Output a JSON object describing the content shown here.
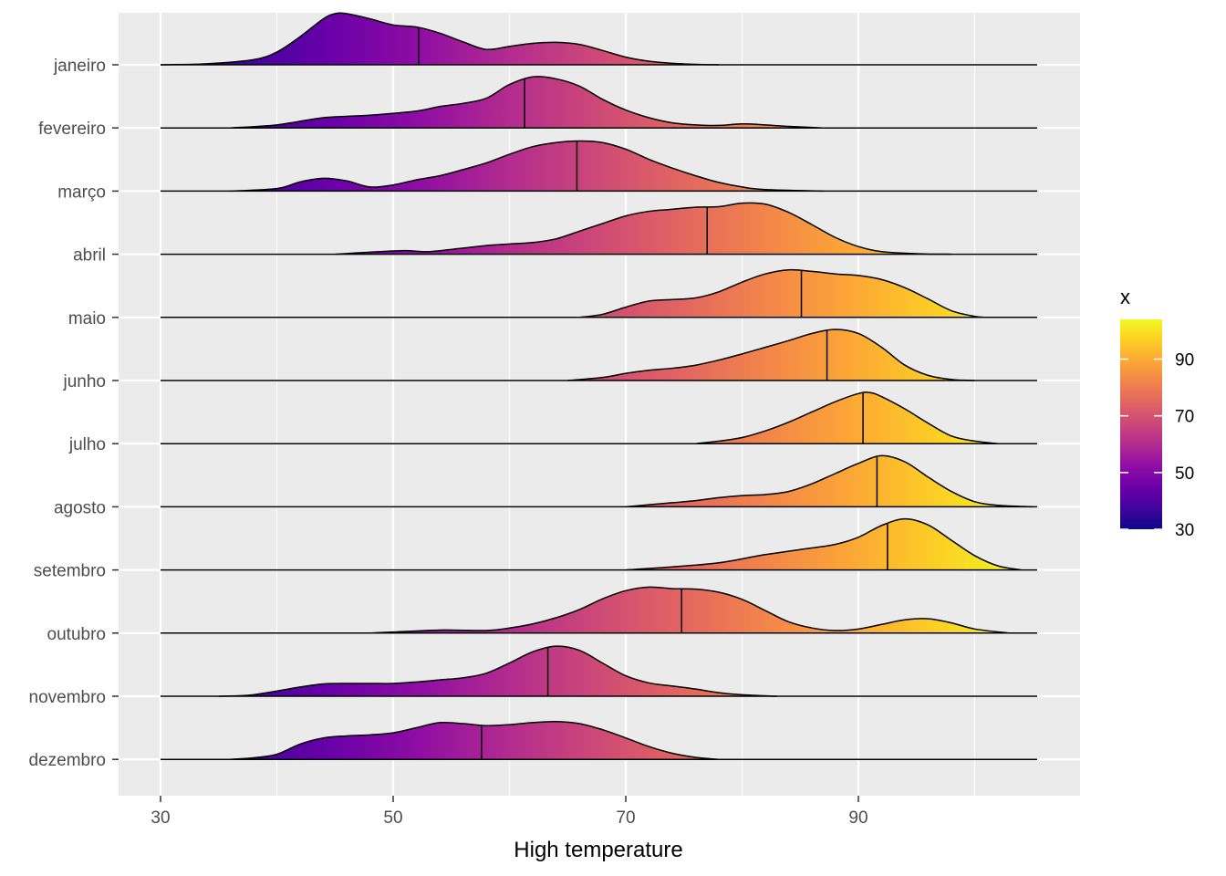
{
  "chart_data": {
    "type": "ridgeline",
    "title": "",
    "xlabel": "High temperature",
    "ylabel": "",
    "xlim": [
      26,
      105
    ],
    "x_ticks": [
      30,
      50,
      70,
      90
    ],
    "x_minor_grid": [
      40,
      60,
      80,
      100
    ],
    "grid": true,
    "fill_scale": "plasma",
    "legend": {
      "title": "x",
      "position": "right",
      "range": [
        30,
        104
      ],
      "ticks": [
        30,
        50,
        70,
        90
      ]
    },
    "categories": [
      "janeiro",
      "fevereiro",
      "março",
      "abril",
      "maio",
      "junho",
      "julho",
      "agosto",
      "setembro",
      "outubro",
      "novembro",
      "dezembro"
    ],
    "series": [
      {
        "name": "janeiro",
        "median": 52.2,
        "range": [
          30,
          78
        ],
        "profile": [
          [
            30,
            0
          ],
          [
            34,
            0.02
          ],
          [
            38,
            0.1
          ],
          [
            40,
            0.25
          ],
          [
            42,
            0.55
          ],
          [
            44,
            0.9
          ],
          [
            45,
            1.0
          ],
          [
            46,
            1.0
          ],
          [
            48,
            0.9
          ],
          [
            50,
            0.78
          ],
          [
            52,
            0.74
          ],
          [
            54,
            0.62
          ],
          [
            56,
            0.45
          ],
          [
            58,
            0.3
          ],
          [
            60,
            0.36
          ],
          [
            62,
            0.42
          ],
          [
            64,
            0.44
          ],
          [
            66,
            0.4
          ],
          [
            68,
            0.28
          ],
          [
            70,
            0.15
          ],
          [
            72,
            0.07
          ],
          [
            74,
            0.03
          ],
          [
            76,
            0.01
          ],
          [
            78,
            0
          ]
        ]
      },
      {
        "name": "fevereiro",
        "median": 61.3,
        "range": [
          36,
          87
        ],
        "profile": [
          [
            36,
            0
          ],
          [
            40,
            0.06
          ],
          [
            44,
            0.2
          ],
          [
            48,
            0.25
          ],
          [
            52,
            0.33
          ],
          [
            54,
            0.42
          ],
          [
            56,
            0.48
          ],
          [
            58,
            0.58
          ],
          [
            60,
            0.85
          ],
          [
            62,
            1.0
          ],
          [
            64,
            0.96
          ],
          [
            66,
            0.82
          ],
          [
            68,
            0.56
          ],
          [
            70,
            0.35
          ],
          [
            72,
            0.2
          ],
          [
            74,
            0.1
          ],
          [
            76,
            0.06
          ],
          [
            78,
            0.05
          ],
          [
            80,
            0.08
          ],
          [
            82,
            0.06
          ],
          [
            84,
            0.03
          ],
          [
            87,
            0
          ]
        ]
      },
      {
        "name": "março",
        "median": 65.8,
        "range": [
          36,
          87
        ],
        "profile": [
          [
            36,
            0
          ],
          [
            40,
            0.05
          ],
          [
            42,
            0.18
          ],
          [
            44,
            0.25
          ],
          [
            46,
            0.2
          ],
          [
            48,
            0.08
          ],
          [
            50,
            0.12
          ],
          [
            52,
            0.22
          ],
          [
            54,
            0.3
          ],
          [
            56,
            0.42
          ],
          [
            58,
            0.55
          ],
          [
            60,
            0.72
          ],
          [
            62,
            0.87
          ],
          [
            64,
            0.95
          ],
          [
            66,
            0.98
          ],
          [
            68,
            0.95
          ],
          [
            70,
            0.82
          ],
          [
            72,
            0.62
          ],
          [
            74,
            0.45
          ],
          [
            76,
            0.3
          ],
          [
            78,
            0.17
          ],
          [
            80,
            0.08
          ],
          [
            82,
            0.03
          ],
          [
            87,
            0
          ]
        ]
      },
      {
        "name": "abril",
        "median": 77.0,
        "range": [
          45,
          98
        ],
        "profile": [
          [
            45,
            0
          ],
          [
            48,
            0.04
          ],
          [
            51,
            0.07
          ],
          [
            53,
            0.05
          ],
          [
            56,
            0.12
          ],
          [
            58,
            0.17
          ],
          [
            60,
            0.2
          ],
          [
            62,
            0.23
          ],
          [
            64,
            0.3
          ],
          [
            66,
            0.45
          ],
          [
            68,
            0.6
          ],
          [
            70,
            0.75
          ],
          [
            72,
            0.84
          ],
          [
            74,
            0.88
          ],
          [
            76,
            0.92
          ],
          [
            78,
            0.93
          ],
          [
            80,
            1.0
          ],
          [
            82,
            0.98
          ],
          [
            84,
            0.82
          ],
          [
            86,
            0.58
          ],
          [
            88,
            0.33
          ],
          [
            90,
            0.15
          ],
          [
            92,
            0.05
          ],
          [
            95,
            0.01
          ],
          [
            98,
            0
          ]
        ]
      },
      {
        "name": "maio",
        "median": 85.1,
        "range": [
          66,
          101
        ],
        "profile": [
          [
            66,
            0
          ],
          [
            68,
            0.06
          ],
          [
            70,
            0.2
          ],
          [
            72,
            0.32
          ],
          [
            74,
            0.35
          ],
          [
            76,
            0.38
          ],
          [
            78,
            0.5
          ],
          [
            80,
            0.69
          ],
          [
            82,
            0.85
          ],
          [
            84,
            0.93
          ],
          [
            86,
            0.9
          ],
          [
            88,
            0.85
          ],
          [
            90,
            0.82
          ],
          [
            92,
            0.74
          ],
          [
            94,
            0.58
          ],
          [
            96,
            0.36
          ],
          [
            98,
            0.13
          ],
          [
            100,
            0.02
          ],
          [
            101,
            0
          ]
        ]
      },
      {
        "name": "junho",
        "median": 87.3,
        "range": [
          65,
          100
        ],
        "profile": [
          [
            65,
            0
          ],
          [
            68,
            0.06
          ],
          [
            70,
            0.14
          ],
          [
            72,
            0.2
          ],
          [
            74,
            0.24
          ],
          [
            76,
            0.3
          ],
          [
            78,
            0.4
          ],
          [
            80,
            0.52
          ],
          [
            82,
            0.65
          ],
          [
            84,
            0.78
          ],
          [
            86,
            0.92
          ],
          [
            88,
            1.0
          ],
          [
            90,
            0.92
          ],
          [
            92,
            0.65
          ],
          [
            94,
            0.3
          ],
          [
            96,
            0.1
          ],
          [
            98,
            0.02
          ],
          [
            100,
            0
          ]
        ]
      },
      {
        "name": "julho",
        "median": 90.4,
        "range": [
          76,
          102
        ],
        "profile": [
          [
            76,
            0
          ],
          [
            78,
            0.05
          ],
          [
            80,
            0.12
          ],
          [
            82,
            0.25
          ],
          [
            84,
            0.42
          ],
          [
            86,
            0.62
          ],
          [
            88,
            0.82
          ],
          [
            90,
            0.98
          ],
          [
            91,
            1.0
          ],
          [
            92,
            0.92
          ],
          [
            94,
            0.68
          ],
          [
            96,
            0.4
          ],
          [
            98,
            0.15
          ],
          [
            100,
            0.05
          ],
          [
            102,
            0
          ]
        ]
      },
      {
        "name": "agosto",
        "median": 91.6,
        "range": [
          70,
          105
        ],
        "profile": [
          [
            70,
            0
          ],
          [
            72,
            0.04
          ],
          [
            74,
            0.08
          ],
          [
            76,
            0.12
          ],
          [
            78,
            0.18
          ],
          [
            80,
            0.22
          ],
          [
            82,
            0.24
          ],
          [
            84,
            0.3
          ],
          [
            86,
            0.45
          ],
          [
            88,
            0.65
          ],
          [
            90,
            0.85
          ],
          [
            92,
            1.0
          ],
          [
            94,
            0.88
          ],
          [
            96,
            0.58
          ],
          [
            98,
            0.3
          ],
          [
            100,
            0.1
          ],
          [
            102,
            0.03
          ],
          [
            105,
            0
          ]
        ]
      },
      {
        "name": "setembro",
        "median": 92.5,
        "range": [
          70,
          104
        ],
        "profile": [
          [
            70,
            0
          ],
          [
            74,
            0.06
          ],
          [
            78,
            0.14
          ],
          [
            82,
            0.3
          ],
          [
            86,
            0.43
          ],
          [
            88,
            0.5
          ],
          [
            90,
            0.64
          ],
          [
            92,
            0.87
          ],
          [
            94,
            1.0
          ],
          [
            96,
            0.88
          ],
          [
            98,
            0.58
          ],
          [
            100,
            0.28
          ],
          [
            102,
            0.08
          ],
          [
            104,
            0
          ]
        ]
      },
      {
        "name": "outubro",
        "median": 74.8,
        "range": [
          48,
          103
        ],
        "profile": [
          [
            48,
            0
          ],
          [
            50,
            0.02
          ],
          [
            54,
            0.06
          ],
          [
            58,
            0.05
          ],
          [
            60,
            0.1
          ],
          [
            62,
            0.18
          ],
          [
            64,
            0.3
          ],
          [
            66,
            0.46
          ],
          [
            68,
            0.67
          ],
          [
            70,
            0.83
          ],
          [
            72,
            0.9
          ],
          [
            74,
            0.87
          ],
          [
            76,
            0.86
          ],
          [
            78,
            0.8
          ],
          [
            80,
            0.66
          ],
          [
            82,
            0.44
          ],
          [
            84,
            0.22
          ],
          [
            86,
            0.1
          ],
          [
            88,
            0.05
          ],
          [
            90,
            0.08
          ],
          [
            92,
            0.17
          ],
          [
            94,
            0.26
          ],
          [
            96,
            0.28
          ],
          [
            98,
            0.2
          ],
          [
            100,
            0.08
          ],
          [
            103,
            0
          ]
        ]
      },
      {
        "name": "novembro",
        "median": 63.3,
        "range": [
          35,
          83
        ],
        "profile": [
          [
            35,
            0
          ],
          [
            38,
            0.03
          ],
          [
            42,
            0.18
          ],
          [
            44,
            0.24
          ],
          [
            46,
            0.25
          ],
          [
            48,
            0.25
          ],
          [
            50,
            0.25
          ],
          [
            52,
            0.28
          ],
          [
            54,
            0.32
          ],
          [
            56,
            0.36
          ],
          [
            58,
            0.45
          ],
          [
            60,
            0.65
          ],
          [
            62,
            0.87
          ],
          [
            64,
            0.98
          ],
          [
            66,
            0.9
          ],
          [
            68,
            0.65
          ],
          [
            70,
            0.4
          ],
          [
            72,
            0.26
          ],
          [
            74,
            0.2
          ],
          [
            76,
            0.14
          ],
          [
            78,
            0.07
          ],
          [
            80,
            0.03
          ],
          [
            83,
            0
          ]
        ]
      },
      {
        "name": "dezembro",
        "median": 57.6,
        "range": [
          36,
          78
        ],
        "profile": [
          [
            36,
            0
          ],
          [
            38,
            0.03
          ],
          [
            40,
            0.1
          ],
          [
            42,
            0.3
          ],
          [
            44,
            0.42
          ],
          [
            46,
            0.46
          ],
          [
            48,
            0.48
          ],
          [
            50,
            0.52
          ],
          [
            52,
            0.62
          ],
          [
            54,
            0.72
          ],
          [
            56,
            0.7
          ],
          [
            58,
            0.66
          ],
          [
            60,
            0.68
          ],
          [
            62,
            0.72
          ],
          [
            64,
            0.74
          ],
          [
            66,
            0.7
          ],
          [
            68,
            0.58
          ],
          [
            70,
            0.42
          ],
          [
            72,
            0.25
          ],
          [
            74,
            0.12
          ],
          [
            76,
            0.04
          ],
          [
            78,
            0
          ]
        ]
      }
    ]
  }
}
